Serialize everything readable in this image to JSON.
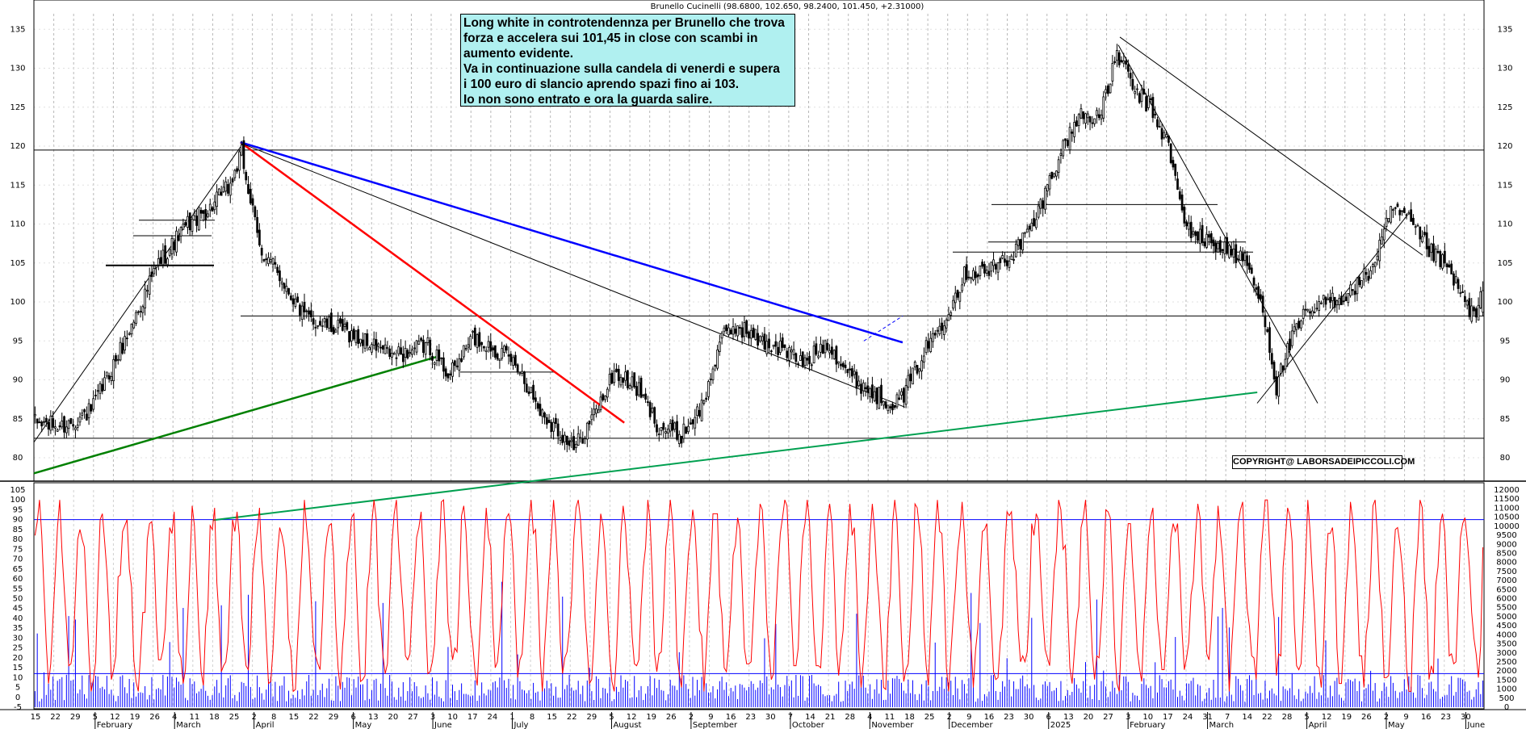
{
  "header": {
    "title": "Brunello Cucinelli (98.6800, 102.650, 98.2400, 101.450, +2.31000)"
  },
  "annotation_text": "Long white in controtendennza per Brunello che trova\nforza e accelera sui 101,45 in close con scambi in\naumento evidente.\nVa in continuazione sulla candela di venerdi e supera\ni 100 euro di slancio aprendo spazi fino ai 103.\nIo non sono entrato e ora la guarda salire.",
  "copyright": "COPYRIGHT@ LABORSADEIPICCOLI.COM",
  "colors": {
    "candle_up": "#ffffff",
    "candle_down": "#000000",
    "osc": "#ff0000",
    "volume": "#0000ff",
    "trend_red": "#ff0000",
    "trend_blue": "#0000ff",
    "trend_green": "#008000",
    "trend_green2": "#00a050"
  },
  "chart_data": [
    {
      "type": "candlestick",
      "grid": true,
      "ylim": [
        77,
        137
      ],
      "y_ticks": [
        80,
        85,
        90,
        95,
        100,
        105,
        110,
        115,
        120,
        125,
        130,
        135
      ],
      "last": {
        "open": 98.68,
        "high": 102.65,
        "low": 98.24,
        "close": 101.45,
        "change": 2.31
      },
      "anchors": [
        [
          0,
          84.5
        ],
        [
          12,
          84
        ],
        [
          25,
          86
        ],
        [
          40,
          95
        ],
        [
          55,
          105
        ],
        [
          68,
          110
        ],
        [
          78,
          112
        ],
        [
          87,
          115
        ],
        [
          92,
          119
        ],
        [
          100,
          107
        ],
        [
          110,
          103
        ],
        [
          120,
          98
        ],
        [
          140,
          96
        ],
        [
          160,
          93
        ],
        [
          175,
          94.5
        ],
        [
          185,
          90.5
        ],
        [
          195,
          95.5
        ],
        [
          205,
          94
        ],
        [
          215,
          92
        ],
        [
          225,
          86
        ],
        [
          235,
          83
        ],
        [
          240,
          81
        ],
        [
          250,
          86
        ],
        [
          258,
          91
        ],
        [
          268,
          89
        ],
        [
          278,
          84
        ],
        [
          288,
          83
        ],
        [
          298,
          87
        ],
        [
          305,
          95
        ],
        [
          313,
          97
        ],
        [
          323,
          95
        ],
        [
          333,
          94
        ],
        [
          343,
          92
        ],
        [
          353,
          95
        ],
        [
          363,
          90.5
        ],
        [
          375,
          88
        ],
        [
          385,
          87
        ],
        [
          395,
          93
        ],
        [
          405,
          98
        ],
        [
          415,
          104
        ],
        [
          425,
          104
        ],
        [
          435,
          106
        ],
        [
          445,
          110
        ],
        [
          455,
          118
        ],
        [
          465,
          124
        ],
        [
          475,
          124
        ],
        [
          482,
          132
        ],
        [
          490,
          127
        ],
        [
          497,
          125
        ],
        [
          505,
          120
        ],
        [
          512,
          110
        ],
        [
          520,
          108
        ],
        [
          530,
          107
        ],
        [
          540,
          105
        ],
        [
          548,
          98
        ],
        [
          553,
          89
        ],
        [
          558,
          94
        ],
        [
          565,
          98
        ],
        [
          575,
          100
        ],
        [
          585,
          101
        ],
        [
          595,
          104
        ],
        [
          605,
          112
        ],
        [
          613,
          110
        ],
        [
          620,
          107
        ],
        [
          630,
          104
        ],
        [
          637,
          100
        ],
        [
          642,
          98
        ],
        [
          645,
          101.45
        ]
      ],
      "h_levels": [
        119.5,
        104.7,
        108.5,
        110.5,
        112.5,
        107.7,
        106.4,
        98.2,
        82.5,
        91
      ],
      "trend_red": [
        [
          92,
          120.5
        ],
        [
          263,
          84.5
        ]
      ],
      "trend_blue": [
        [
          92,
          120.5
        ],
        [
          387,
          94.8
        ]
      ],
      "trend_green": [
        [
          0,
          78
        ],
        [
          180,
          93
        ]
      ],
      "trend_green2": [
        [
          80,
          72
        ],
        [
          545,
          88.4
        ]
      ],
      "trend_black": [
        [
          0,
          82
        ],
        [
          93,
          120.3
        ],
        [
          388,
          86.5
        ]
      ]
    },
    {
      "type": "line",
      "series": [
        {
          "values": []
        },
        {
          "type": "bar",
          "values": []
        }
      ],
      "ylim_left": [
        -5,
        105
      ],
      "ylim_right": [
        0,
        12000
      ],
      "y_ticks_left": [
        -5,
        0,
        5,
        10,
        15,
        20,
        25,
        30,
        35,
        40,
        45,
        50,
        55,
        60,
        65,
        70,
        75,
        80,
        85,
        90,
        95,
        100,
        105
      ],
      "y_ticks_right": [
        0,
        500,
        1000,
        1500,
        2000,
        2500,
        3000,
        3500,
        4000,
        4500,
        5000,
        5500,
        6000,
        6500,
        7000,
        7500,
        8000,
        8500,
        9000,
        9500,
        10000,
        10500,
        11000,
        11500,
        12000
      ],
      "h_levels": [
        90,
        12
      ]
    }
  ],
  "x_axis": {
    "day_ticks": [
      "15",
      "22",
      "29",
      "5",
      "12",
      "19",
      "26",
      "4",
      "11",
      "18",
      "25",
      "2",
      "8",
      "15",
      "22",
      "29",
      "6",
      "13",
      "20",
      "27",
      "3",
      "10",
      "17",
      "24",
      "1",
      "8",
      "15",
      "22",
      "29",
      "5",
      "12",
      "19",
      "26",
      "2",
      "9",
      "16",
      "23",
      "30",
      "7",
      "14",
      "21",
      "28",
      "4",
      "11",
      "18",
      "25",
      "2",
      "9",
      "16",
      "23",
      "30",
      "6",
      "13",
      "20",
      "27",
      "3",
      "10",
      "17",
      "24",
      "31",
      "7",
      "14",
      "22",
      "28",
      "5",
      "12",
      "19",
      "26",
      "2",
      "9",
      "16",
      "23",
      "30"
    ],
    "months": [
      "February",
      "March",
      "April",
      "May",
      "June",
      "July",
      "August",
      "September",
      "October",
      "November",
      "December",
      "2025",
      "February",
      "March",
      "April",
      "May",
      "June"
    ],
    "year_label": "2025"
  }
}
